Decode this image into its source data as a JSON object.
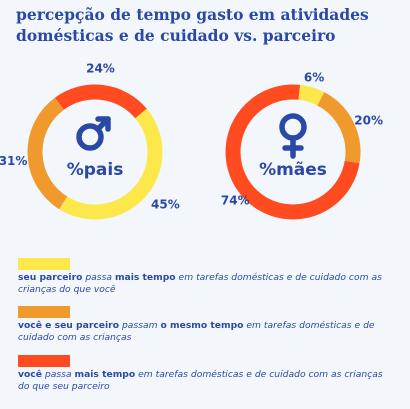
{
  "title_line1": "percepção de tempo gasto em atividades",
  "title_line2": "domésticas e de cuidado vs. parceiro",
  "colors": {
    "yellow": "#fce84a",
    "orange": "#f0992c",
    "red": "#ff4b1f",
    "text_blue": "#2a49a6"
  },
  "chart_data": [
    {
      "type": "pie",
      "style": "donut",
      "center_label": "%pais",
      "center_icon": "male-symbol-icon",
      "slices": [
        {
          "label": "45%",
          "value": 45,
          "color": "#fce84a"
        },
        {
          "label": "31%",
          "value": 31,
          "color": "#f0992c"
        },
        {
          "label": "24%",
          "value": 24,
          "color": "#ff4b1f"
        }
      ]
    },
    {
      "type": "pie",
      "style": "donut",
      "center_label": "%mães",
      "center_icon": "female-symbol-icon",
      "slices": [
        {
          "label": "6%",
          "value": 6,
          "color": "#fce84a"
        },
        {
          "label": "20%",
          "value": 20,
          "color": "#f0992c"
        },
        {
          "label": "74%",
          "value": 74,
          "color": "#ff4b1f"
        }
      ]
    }
  ],
  "legend": [
    {
      "color": "#fce84a",
      "parts": [
        {
          "t": "seu parceiro",
          "s": "b"
        },
        {
          "t": " ",
          "s": "n"
        },
        {
          "t": "passa",
          "s": "i"
        },
        {
          "t": " ",
          "s": "n"
        },
        {
          "t": "mais tempo",
          "s": "b"
        },
        {
          "t": " ",
          "s": "n"
        },
        {
          "t": "em tarefas domésticas e de cuidado com as crianças do que você",
          "s": "i"
        }
      ]
    },
    {
      "color": "#f0992c",
      "parts": [
        {
          "t": "você e seu parceiro",
          "s": "b"
        },
        {
          "t": " ",
          "s": "n"
        },
        {
          "t": "passam",
          "s": "i"
        },
        {
          "t": " ",
          "s": "n"
        },
        {
          "t": "o mesmo tempo",
          "s": "b"
        },
        {
          "t": " ",
          "s": "n"
        },
        {
          "t": "em tarefas domésticas e de cuidado com as crianças",
          "s": "i"
        }
      ]
    },
    {
      "color": "#ff4b1f",
      "parts": [
        {
          "t": "você",
          "s": "b"
        },
        {
          "t": " ",
          "s": "n"
        },
        {
          "t": "passa",
          "s": "i"
        },
        {
          "t": " ",
          "s": "n"
        },
        {
          "t": "mais tempo",
          "s": "b"
        },
        {
          "t": " ",
          "s": "n"
        },
        {
          "t": "em tarefas domésticas e de cuidado com as crianças do que seu parceiro",
          "s": "i"
        }
      ]
    }
  ]
}
